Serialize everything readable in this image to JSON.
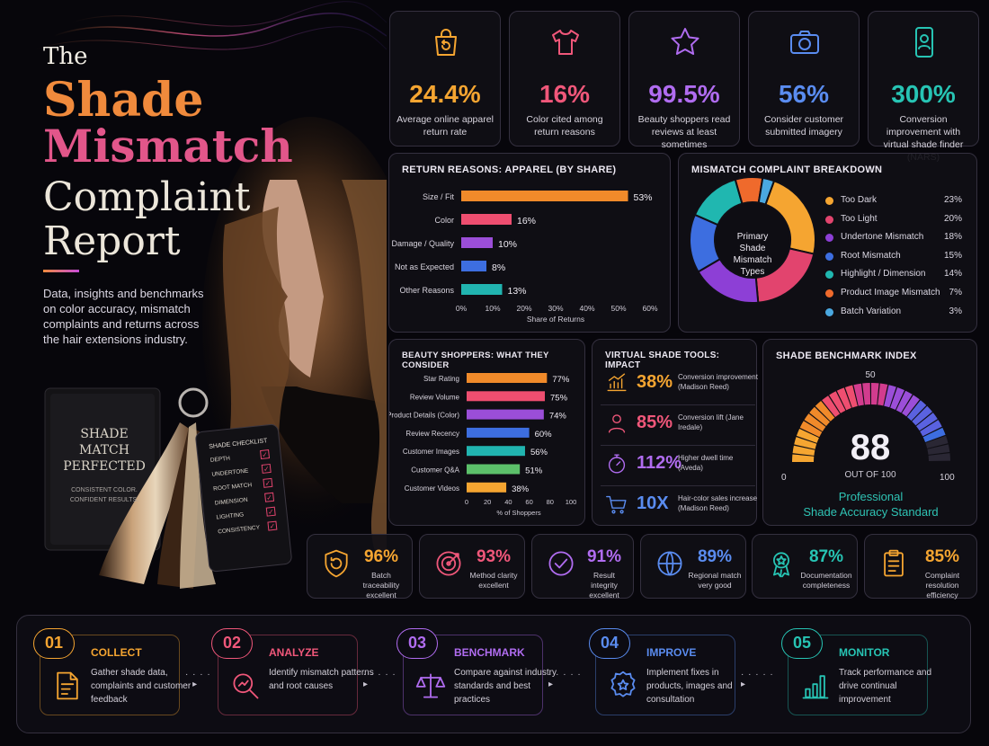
{
  "hero": {
    "title_the": "The",
    "title_shade": "Shade",
    "title_mismatch": "Mismatch",
    "title_complaint": "Complaint",
    "title_report": "Report",
    "subtitle": "Data, insights and benchmarks on color accuracy, mismatch complaints and returns across the hair extensions industry.",
    "book_title": "SHADE MATCH PERFECTED",
    "book_tagline": "CONSISTENT COLOR. CONFIDENT RESULTS.",
    "checklist_title": "SHADE CHECKLIST",
    "checklist_items": [
      "DEPTH",
      "UNDERTONE",
      "ROOT MATCH",
      "DIMENSION",
      "LIGHTING",
      "CONSISTENCY"
    ]
  },
  "kpis": [
    {
      "value": "24.4%",
      "label": "Average online apparel return rate",
      "color": "#f5a531",
      "icon": "shopping-bag-return-icon"
    },
    {
      "value": "16%",
      "label": "Color cited among return reasons",
      "color": "#f0577a",
      "icon": "t-shirt-icon"
    },
    {
      "value": "99.5%",
      "label": "Beauty shoppers read reviews at least sometimes",
      "color": "#b06cf0",
      "icon": "star-icon"
    },
    {
      "value": "56%",
      "label": "Consider customer submitted imagery",
      "color": "#5a8cf0",
      "icon": "camera-icon"
    },
    {
      "value": "300%",
      "label": "Conversion improvement with virtual shade finder (NARS)",
      "color": "#27c4b4",
      "icon": "phone-user-icon"
    }
  ],
  "return_reasons": {
    "title": "RETURN REASONS: APPAREL (BY SHARE)",
    "chart_data": {
      "type": "bar",
      "orientation": "horizontal",
      "categories": [
        "Size / Fit",
        "Color",
        "Damage / Quality",
        "Not as Expected",
        "Other Reasons"
      ],
      "values": [
        53,
        16,
        10,
        8,
        13
      ],
      "value_labels": [
        "53%",
        "16%",
        "10%",
        "8%",
        "13%"
      ],
      "colors": [
        "#f08a2a",
        "#ee4e70",
        "#9b4ed8",
        "#3d6ee0",
        "#21b4b0"
      ],
      "xticks": [
        "0%",
        "10%",
        "20%",
        "30%",
        "40%",
        "50%",
        "60%"
      ],
      "xlim": [
        0,
        60
      ],
      "xlabel": "Share of Returns",
      "grid": false
    }
  },
  "mismatch": {
    "title": "MISMATCH COMPLAINT BREAKDOWN",
    "center_label": "Primary Shade Mismatch Types",
    "chart_data": {
      "type": "pie",
      "donut": true,
      "labels": [
        "Too Dark",
        "Too Light",
        "Undertone Mismatch",
        "Root Mismatch",
        "Highlight / Dimension",
        "Product Image Mismatch",
        "Batch Variation"
      ],
      "values": [
        23,
        20,
        18,
        15,
        14,
        7,
        3
      ],
      "value_labels": [
        "23%",
        "20%",
        "18%",
        "15%",
        "14%",
        "7%",
        "3%"
      ],
      "colors": [
        "#f5a531",
        "#e2446e",
        "#8d3fd6",
        "#3d6ee0",
        "#20b7b0",
        "#ef6a2c",
        "#4aa8e0"
      ],
      "legend": "right"
    }
  },
  "shoppers": {
    "title": "BEAUTY SHOPPERS: WHAT THEY CONSIDER",
    "chart_data": {
      "type": "bar",
      "orientation": "horizontal",
      "categories": [
        "Star Rating",
        "Review Volume",
        "Product Details (Color)",
        "Review Recency",
        "Customer Images",
        "Customer Q&A",
        "Customer Videos"
      ],
      "values": [
        77,
        75,
        74,
        60,
        56,
        51,
        38
      ],
      "value_labels": [
        "77%",
        "75%",
        "74%",
        "60%",
        "56%",
        "51%",
        "38%"
      ],
      "colors": [
        "#f08a2a",
        "#ee4e70",
        "#9b4ed8",
        "#3d6ee0",
        "#21b4b0",
        "#5cc06a",
        "#f5a531"
      ],
      "xticks": [
        "0",
        "20",
        "40",
        "60",
        "80",
        "100"
      ],
      "xlim": [
        0,
        100
      ],
      "xlabel": "% of Shoppers"
    }
  },
  "virtual_tools": {
    "title": "VIRTUAL SHADE TOOLS: IMPACT",
    "items": [
      {
        "value": "38%",
        "label": "Conversion improvement (Madison Reed)",
        "color": "#f5a531",
        "icon": "growth-chart-icon"
      },
      {
        "value": "85%",
        "label": "Conversion lift (Jane Iredale)",
        "color": "#f0577a",
        "icon": "user-icon"
      },
      {
        "value": "112%",
        "label": "Higher dwell time (Aveda)",
        "color": "#b06cf0",
        "icon": "stopwatch-icon"
      },
      {
        "value": "10X",
        "label": "Hair-color sales increase (Madison Reed)",
        "color": "#5a8cf0",
        "icon": "cart-icon"
      }
    ]
  },
  "benchmark": {
    "title": "SHADE BENCHMARK INDEX",
    "score": "88",
    "score_fraction": 0.88,
    "out_of": "OUT OF 100",
    "tick_min": "0",
    "tick_mid": "50",
    "tick_max": "100",
    "caption_1": "Professional",
    "caption_2": "Shade Accuracy Standard"
  },
  "scores": [
    {
      "value": "96%",
      "label": "Batch traceability excellent",
      "color": "#f5a531",
      "icon": "shield-refresh-icon"
    },
    {
      "value": "93%",
      "label": "Method clarity excellent",
      "color": "#f0577a",
      "icon": "target-icon"
    },
    {
      "value": "91%",
      "label": "Result integrity excellent",
      "color": "#b06cf0",
      "icon": "check-circle-icon"
    },
    {
      "value": "89%",
      "label": "Regional match very good",
      "color": "#5a8cf0",
      "icon": "globe-icon"
    },
    {
      "value": "87%",
      "label": "Documentation completeness",
      "color": "#27c4b4",
      "icon": "award-ribbon-icon"
    },
    {
      "value": "85%",
      "label": "Complaint resolution efficiency",
      "color": "#f5a531",
      "icon": "clipboard-icon"
    }
  ],
  "process": [
    {
      "num": "01",
      "name": "COLLECT",
      "desc": "Gather shade data, complaints and customer feedback",
      "color": "#f5a531",
      "icon": "document-pen-icon"
    },
    {
      "num": "02",
      "name": "ANALYZE",
      "desc": "Identify mismatch patterns and root causes",
      "color": "#f0577a",
      "icon": "magnifier-icon"
    },
    {
      "num": "03",
      "name": "BENCHMARK",
      "desc": "Compare against industry standards and best practices",
      "color": "#b06cf0",
      "icon": "scales-icon"
    },
    {
      "num": "04",
      "name": "IMPROVE",
      "desc": "Implement fixes in products, images and consultation",
      "color": "#5a8cf0",
      "icon": "badge-star-icon"
    },
    {
      "num": "05",
      "name": "MONITOR",
      "desc": "Track performance and drive continual improvement",
      "color": "#27c4b4",
      "icon": "bar-chart-icon"
    }
  ]
}
